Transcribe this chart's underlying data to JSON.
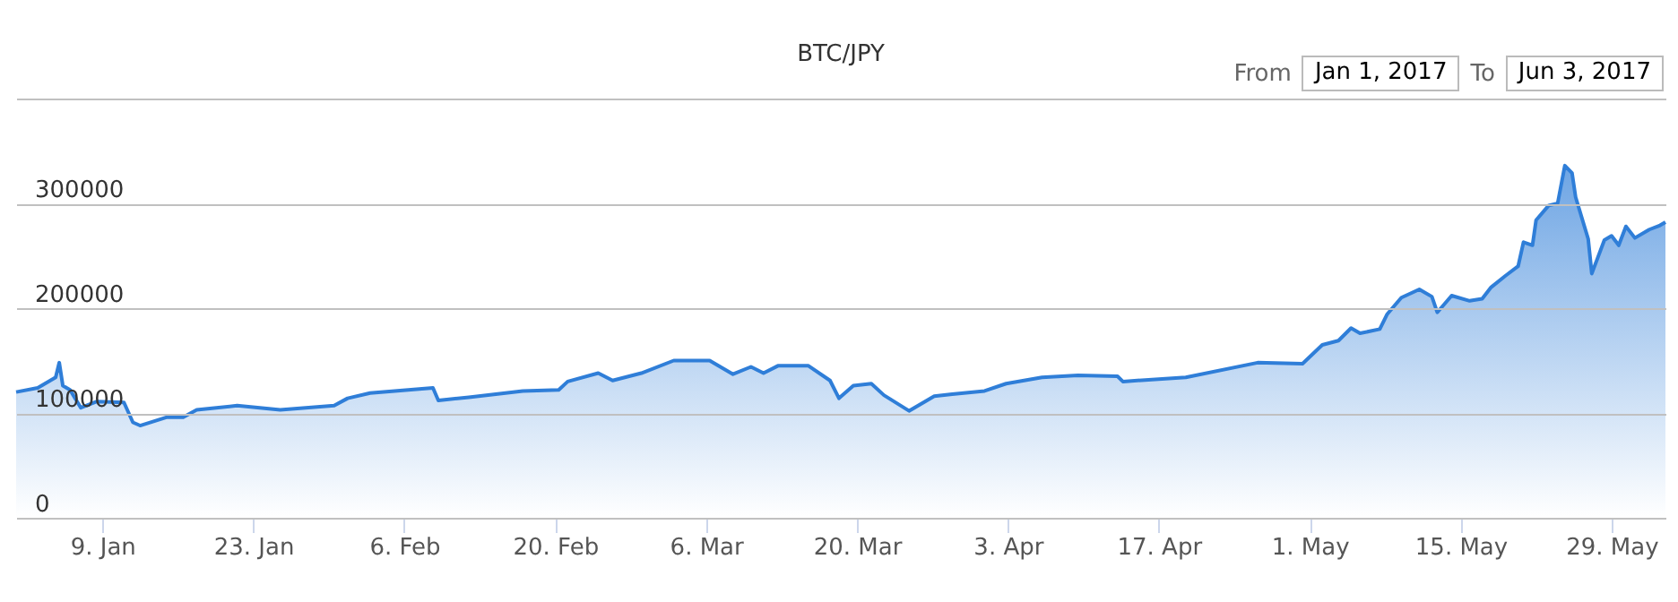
{
  "chart_data": {
    "type": "area",
    "title": "BTC/JPY",
    "annotations": [
      "From",
      "Jan 1, 2017",
      "To",
      "Jun 3, 2017"
    ],
    "x": [
      "2017-01-01",
      "2017-01-03",
      "2017-01-04T16:00",
      "2017-01-05",
      "2017-01-05T08:00",
      "2017-01-06",
      "2017-01-07",
      "2017-01-08T12:00",
      "2017-01-11",
      "2017-01-11T20:00",
      "2017-01-12T12:00",
      "2017-01-15",
      "2017-01-16T12:00",
      "2017-01-17T18:00",
      "2017-01-21T12:00",
      "2017-01-25T12:00",
      "2017-01-30T12:00",
      "2017-01-31T18:00",
      "2017-02-02T20:00",
      "2017-02-08T16:00",
      "2017-02-09T04:00",
      "2017-02-12",
      "2017-02-17",
      "2017-02-20T08:00",
      "2017-02-21T04:00",
      "2017-02-24",
      "2017-02-25T08:00",
      "2017-02-28",
      "2017-03-03",
      "2017-03-06T08:00",
      "2017-03-08T12:00",
      "2017-03-10T04:00",
      "2017-03-11T08:00",
      "2017-03-12T16:00",
      "2017-03-15T12:00",
      "2017-03-17T12:00",
      "2017-03-18T08:00",
      "2017-03-19T16:00",
      "2017-03-21T08:00",
      "2017-03-22T12:00",
      "2017-03-24T20:00",
      "2017-03-27T04:00",
      "2017-03-28T20:00",
      "2017-03-31T20:00",
      "2017-04-02T20:00",
      "2017-04-06T04:00",
      "2017-04-09T12:00",
      "2017-04-13T04:00",
      "2017-04-13T16:00",
      "2017-04-19T12:00",
      "2017-04-26T04:00",
      "2017-04-30T08:00",
      "2017-05-02T04:00",
      "2017-05-03T16:00",
      "2017-05-04T20:00",
      "2017-05-05T16:00",
      "2017-05-07T12:00",
      "2017-05-08T04:00",
      "2017-05-09T12:00",
      "2017-05-11T04:00",
      "2017-05-12T08:00",
      "2017-05-12T20:00",
      "2017-05-14T04:00",
      "2017-05-15T20:00",
      "2017-05-17",
      "2017-05-17T20:00",
      "2017-05-19T04:00",
      "2017-05-20T08:00",
      "2017-05-20T20:00",
      "2017-05-21T16:00",
      "2017-05-22",
      "2017-05-23T04:00",
      "2017-05-24",
      "2017-05-24T16:00",
      "2017-05-25T08:00",
      "2017-05-25T16:00",
      "2017-05-26T20:00",
      "2017-05-27T04:00",
      "2017-05-28T08:00",
      "2017-05-29",
      "2017-05-29T16:00",
      "2017-05-30T08:00",
      "2017-05-31T04:00",
      "2017-06-01T12:00",
      "2017-06-02T12:00",
      "2017-06-03"
    ],
    "series": [
      {
        "color": "#2f7ed8",
        "values": [
          120000,
          124000,
          134000,
          148000,
          126000,
          122000,
          105000,
          111000,
          110000,
          91000,
          88000,
          96000,
          96000,
          103000,
          107000,
          103000,
          107000,
          114000,
          119000,
          124000,
          112000,
          115000,
          121000,
          122000,
          130000,
          138000,
          131000,
          138000,
          150000,
          150000,
          137000,
          144000,
          138000,
          145000,
          145000,
          131000,
          114000,
          126000,
          128000,
          117000,
          102000,
          116000,
          118000,
          121000,
          128000,
          134000,
          136000,
          135000,
          130000,
          134000,
          148000,
          147000,
          165000,
          169000,
          181000,
          176000,
          180000,
          194000,
          210000,
          218000,
          211000,
          196000,
          212000,
          207000,
          209000,
          220000,
          231000,
          240000,
          263000,
          260000,
          284000,
          298000,
          300000,
          336000,
          329000,
          306000,
          266000,
          233000,
          265000,
          269000,
          260000,
          278000,
          267000,
          275000,
          279000,
          282000
        ]
      }
    ],
    "xlim": [
      "2017-01-01",
      "2017-06-03"
    ],
    "xticks": [
      {
        "value": "2017-01-09",
        "label": "9. Jan"
      },
      {
        "value": "2017-01-23",
        "label": "23. Jan"
      },
      {
        "value": "2017-02-06",
        "label": "6. Feb"
      },
      {
        "value": "2017-02-20",
        "label": "20. Feb"
      },
      {
        "value": "2017-03-06",
        "label": "6. Mar"
      },
      {
        "value": "2017-03-20",
        "label": "20. Mar"
      },
      {
        "value": "2017-04-03",
        "label": "3. Apr"
      },
      {
        "value": "2017-04-17",
        "label": "17. Apr"
      },
      {
        "value": "2017-05-01",
        "label": "1. May"
      },
      {
        "value": "2017-05-15",
        "label": "15. May"
      },
      {
        "value": "2017-05-29",
        "label": "29. May"
      }
    ],
    "ylim": [
      0,
      400000
    ],
    "yticks": [
      0,
      100000,
      200000,
      300000,
      {
        "value": 400000,
        "label": null
      }
    ],
    "grid": "y"
  }
}
